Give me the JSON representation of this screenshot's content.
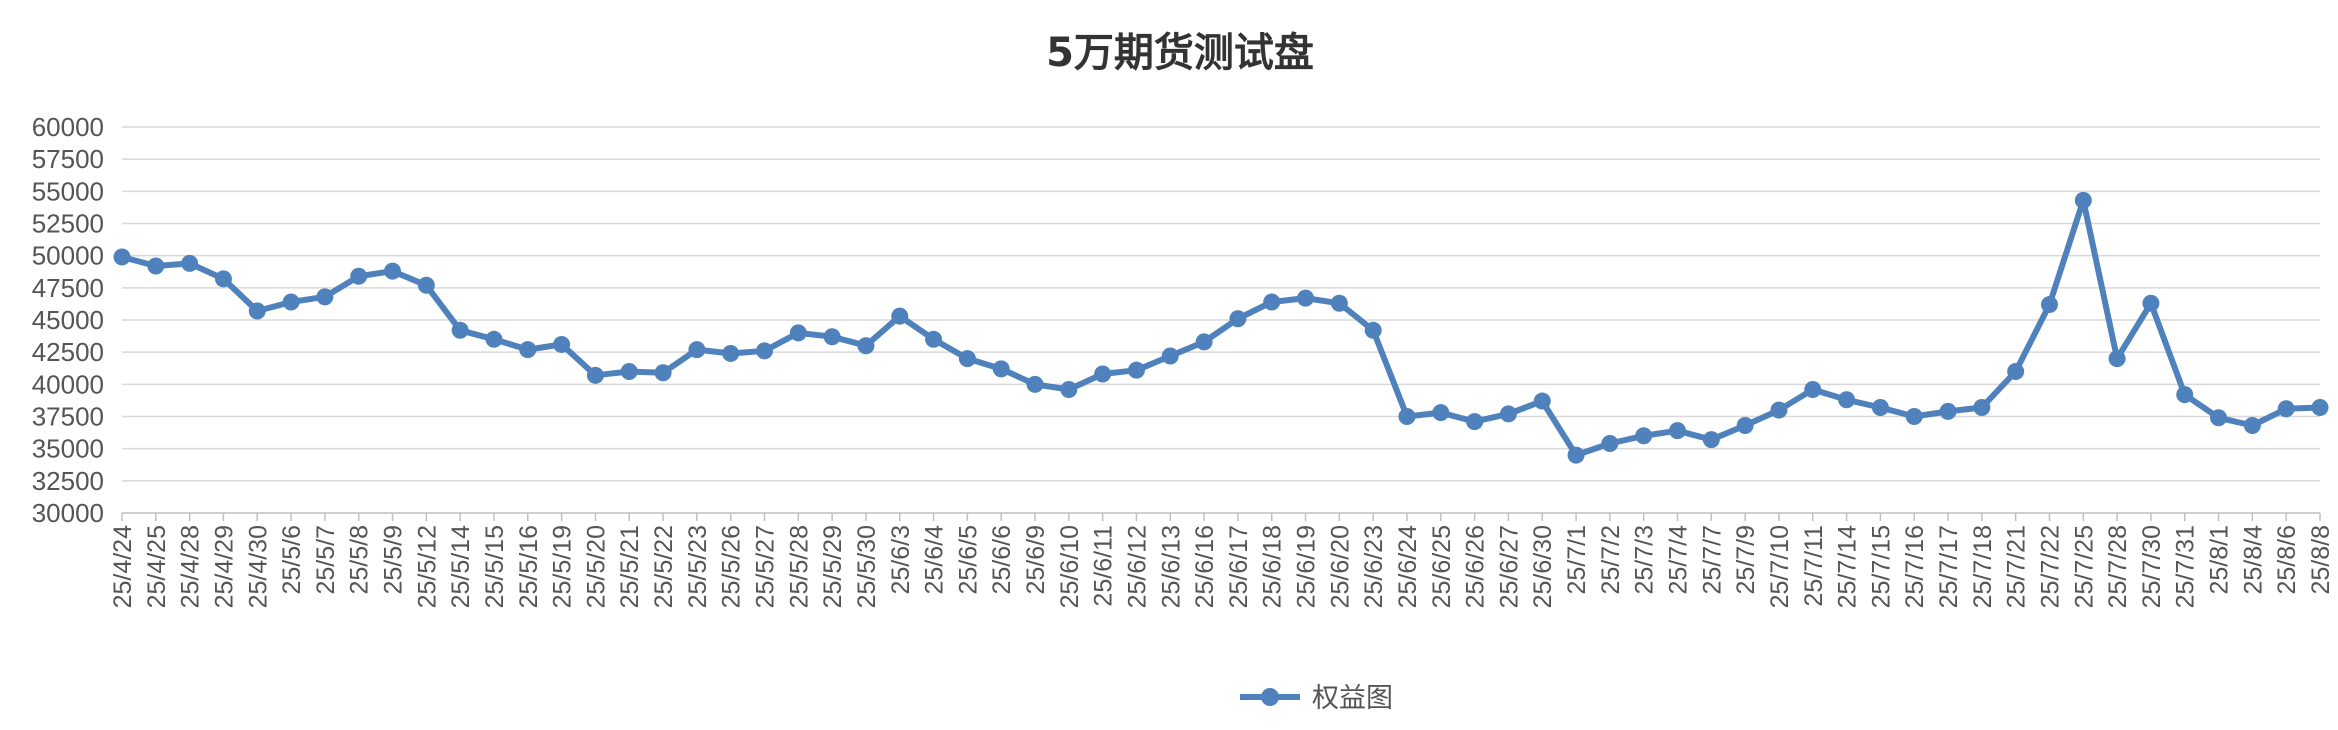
{
  "chart_data": {
    "type": "line",
    "title": "5万期货测试盘",
    "xlabel": "",
    "ylabel": "",
    "ylim": [
      30000,
      60000
    ],
    "yticks": [
      30000,
      32500,
      35000,
      37500,
      40000,
      42500,
      45000,
      47500,
      50000,
      52500,
      55000,
      57500,
      60000
    ],
    "grid": true,
    "legend": "bottom-center",
    "categories": [
      "25/4/24",
      "25/4/25",
      "25/4/28",
      "25/4/29",
      "25/4/30",
      "25/5/6",
      "25/5/7",
      "25/5/8",
      "25/5/9",
      "25/5/12",
      "25/5/14",
      "25/5/15",
      "25/5/16",
      "25/5/19",
      "25/5/20",
      "25/5/21",
      "25/5/22",
      "25/5/23",
      "25/5/26",
      "25/5/27",
      "25/5/28",
      "25/5/29",
      "25/5/30",
      "25/6/3",
      "25/6/4",
      "25/6/5",
      "25/6/6",
      "25/6/9",
      "25/6/10",
      "25/6/11",
      "25/6/12",
      "25/6/13",
      "25/6/16",
      "25/6/17",
      "25/6/18",
      "25/6/19",
      "25/6/20",
      "25/6/23",
      "25/6/24",
      "25/6/25",
      "25/6/26",
      "25/6/27",
      "25/6/30",
      "25/7/1",
      "25/7/2",
      "25/7/3",
      "25/7/4",
      "25/7/7",
      "25/7/9",
      "25/7/10",
      "25/7/11",
      "25/7/14",
      "25/7/15",
      "25/7/16",
      "25/7/17",
      "25/7/18",
      "25/7/21",
      "25/7/22",
      "25/7/25",
      "25/7/28",
      "25/7/30",
      "25/7/31",
      "25/8/1",
      "25/8/4",
      "25/8/6",
      "25/8/8"
    ],
    "series": [
      {
        "name": "权益图",
        "color": "#4f81bd",
        "values": [
          49900,
          49200,
          49400,
          48200,
          45700,
          46400,
          46800,
          48400,
          48800,
          47700,
          44200,
          43500,
          42700,
          43100,
          40700,
          41000,
          40900,
          42700,
          42400,
          42600,
          44000,
          43700,
          43000,
          45300,
          43500,
          42000,
          41200,
          40000,
          39600,
          40800,
          41100,
          42200,
          43300,
          45100,
          46400,
          46700,
          46300,
          44200,
          37500,
          37800,
          37100,
          37700,
          38700,
          34500,
          35400,
          36000,
          36400,
          35700,
          36800,
          38000,
          39600,
          38800,
          38200,
          37500,
          37900,
          38200,
          41000,
          46200,
          54300,
          42000,
          46300,
          39200,
          37400,
          36800,
          38100,
          38200
        ]
      }
    ]
  }
}
